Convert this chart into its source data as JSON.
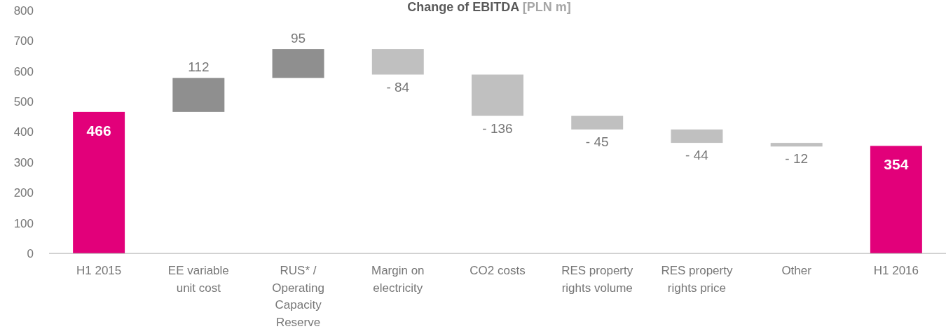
{
  "chart_data": {
    "type": "bar",
    "title": "Change of EBITDA [PLN m]",
    "categories": [
      "H1 2015",
      "EE variable unit cost",
      "RUS* / Operating Capacity Reserve",
      "Margin on electricity",
      "CO2 costs",
      "RES property rights volume",
      "RES property rights price",
      "Other",
      "H1 2016"
    ],
    "values": [
      466,
      112,
      95,
      -84,
      -136,
      -45,
      -44,
      -12,
      354
    ],
    "base": [
      0,
      466,
      578,
      673,
      589,
      453,
      408,
      364,
      0
    ],
    "colors": [
      "#e2007a",
      "#8f8f8f",
      "#8f8f8f",
      "#c0c0c0",
      "#c0c0c0",
      "#c0c0c0",
      "#c0c0c0",
      "#c0c0c0",
      "#e2007a"
    ],
    "value_labels": [
      "466",
      "112",
      "95",
      "- 84",
      "- 136",
      "- 45",
      "- 44",
      "- 12",
      "354"
    ],
    "ylim": [
      0,
      800
    ],
    "yticks": [
      0,
      100,
      200,
      300,
      400,
      500,
      600,
      700,
      800
    ]
  }
}
